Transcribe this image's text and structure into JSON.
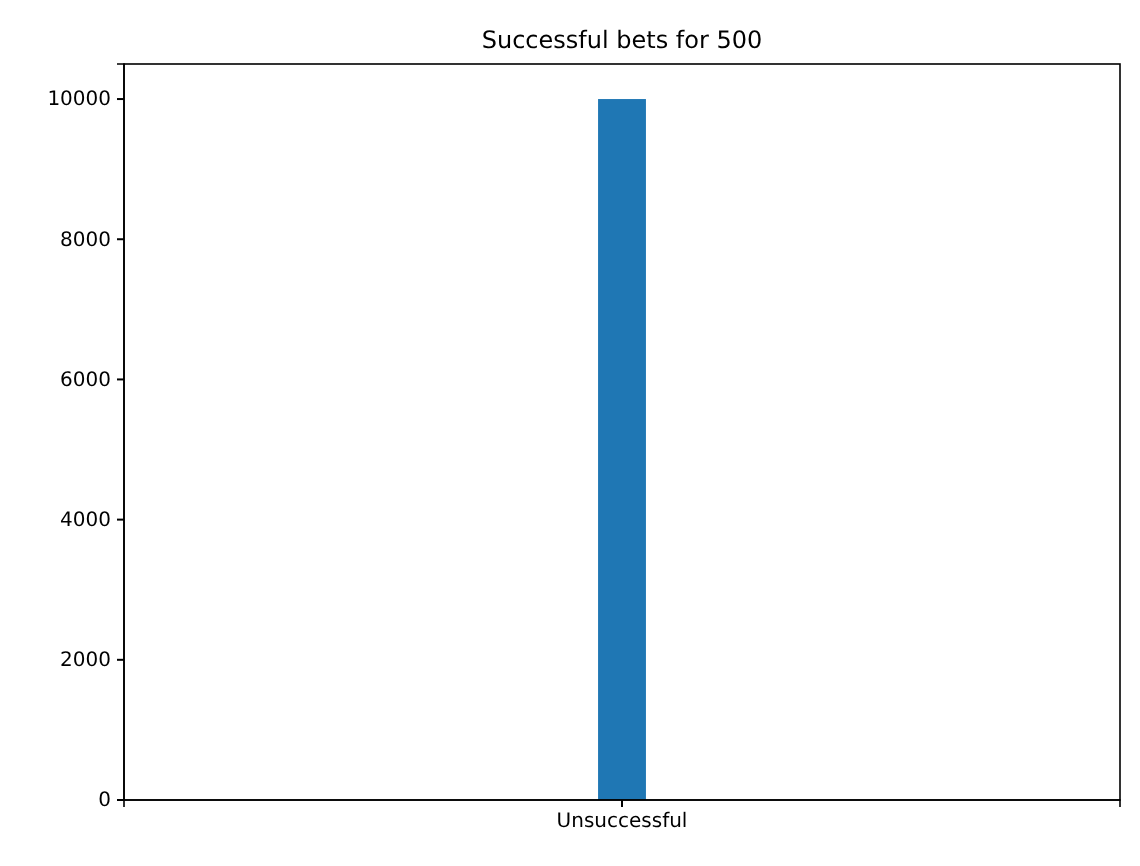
{
  "chart_data": {
    "type": "bar",
    "title": "Successful bets for 500",
    "categories": [
      "Unsuccessful"
    ],
    "values": [
      10000
    ],
    "color": "#1f77b4",
    "ylim": [
      0,
      10500
    ],
    "yticks": [
      0,
      2000,
      4000,
      6000,
      8000,
      10000
    ],
    "grid": false
  }
}
